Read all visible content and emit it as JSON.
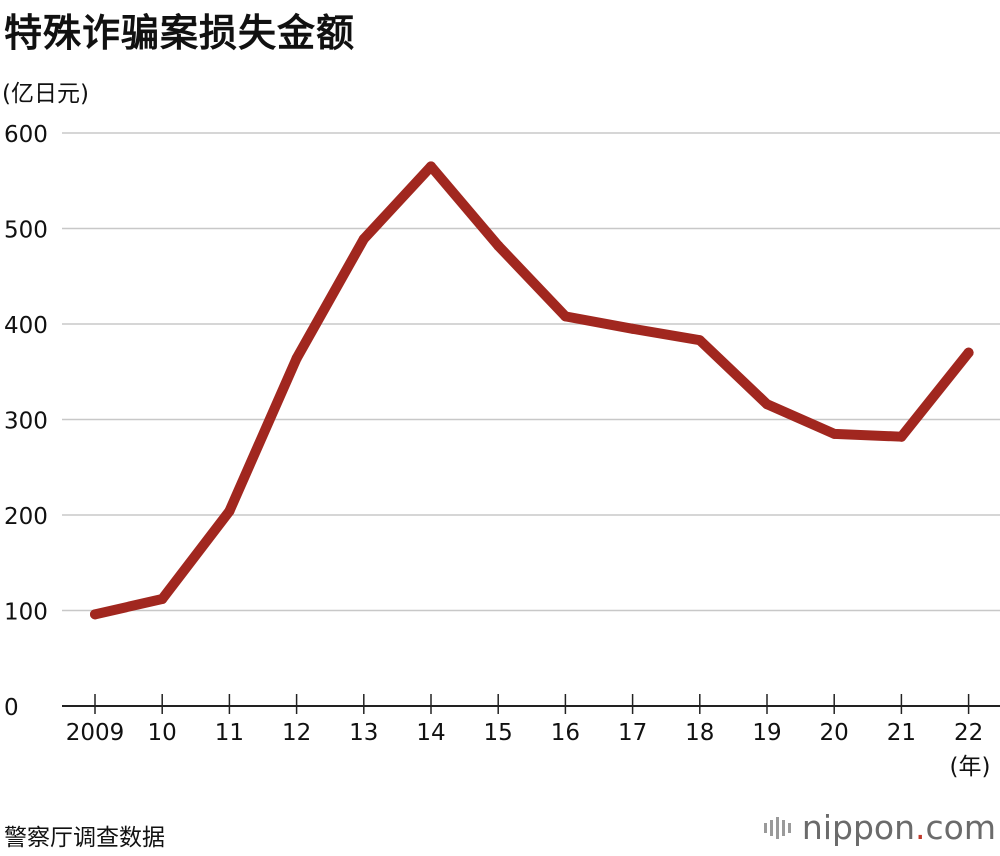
{
  "title": "特殊诈骗案损失金额",
  "unit_label": "(亿日元)",
  "source": "警察厅调查数据",
  "brand": {
    "name": "nippon",
    "dot": ".",
    "tld": "com",
    "icon": "nippon-bars-icon"
  },
  "colors": {
    "line": "#a1271f",
    "grid": "#c8c8c8",
    "axis": "#222222",
    "brand_dot": "#c0392b"
  },
  "chart_data": {
    "type": "line",
    "title": "特殊诈骗案损失金额",
    "ylabel": "(亿日元)",
    "xlabel": "",
    "x_unit_label": "(年)",
    "categories": [
      "2009",
      "10",
      "11",
      "12",
      "13",
      "14",
      "15",
      "16",
      "17",
      "18",
      "19",
      "20",
      "21",
      "22"
    ],
    "series": [
      {
        "values": [
          96,
          112,
          204,
          364,
          489,
          565,
          482,
          408,
          395,
          383,
          316,
          285,
          282,
          370
        ]
      }
    ],
    "ylim": [
      0,
      600
    ],
    "yticks": [
      0,
      100,
      200,
      300,
      400,
      500,
      600
    ],
    "grid": true,
    "legend": "none"
  }
}
